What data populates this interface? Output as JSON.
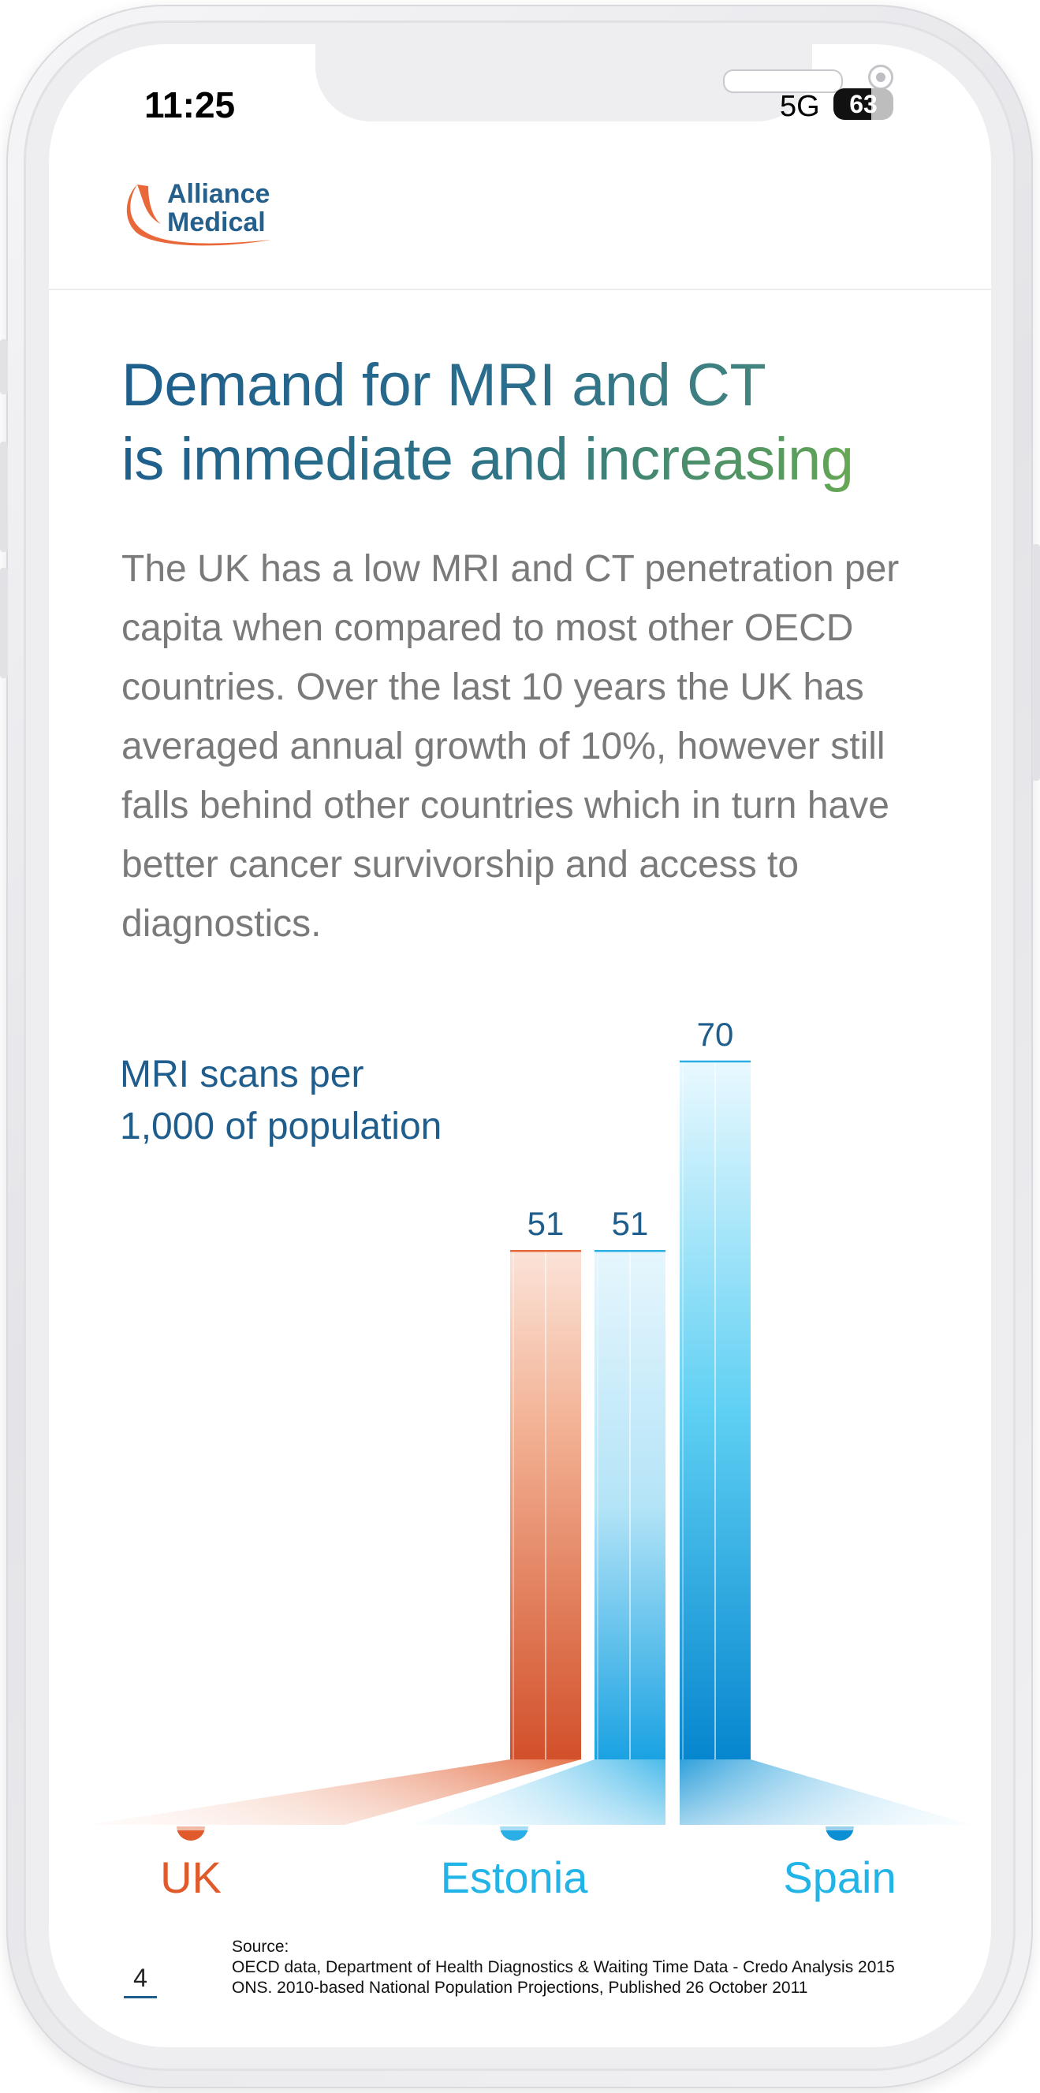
{
  "status_bar": {
    "time": "11:25",
    "network": "5G",
    "battery": "63",
    "battery_level": 0.63
  },
  "brand": {
    "name_line1": "Alliance",
    "name_line2": "Medical",
    "color_text": "#255f8c",
    "color_swoosh": "#e8683a"
  },
  "headline": {
    "line1": "Demand for MRI and CT",
    "line2": "is immediate and increasing"
  },
  "body": "The UK has a low MRI and CT penetration per capita when compared to most other OECD countries. Over the last 10 years the UK has averaged annual growth of 10%, however still falls behind other countries which in turn have better cancer survivorship and access to diagnostics.",
  "chart_data": {
    "type": "bar",
    "title_line1": "MRI scans per",
    "title_line2": "1,000 of population",
    "categories": [
      "UK",
      "Estonia",
      "Spain"
    ],
    "values": [
      51,
      51,
      70
    ],
    "value_labels": [
      "51",
      "51",
      "70"
    ],
    "colors": [
      "#e05a2b",
      "#2aaee6",
      "#0a8fd4"
    ],
    "ylim": [
      0,
      70
    ],
    "grid": false,
    "legend": "none"
  },
  "source": {
    "label": "Source:",
    "line1": "OECD data, Department of Health Diagnostics & Waiting Time Data - Credo Analysis 2015",
    "line2": "ONS. 2010-based National Population Projections, Published 26 October 2011"
  },
  "page_number": "4"
}
